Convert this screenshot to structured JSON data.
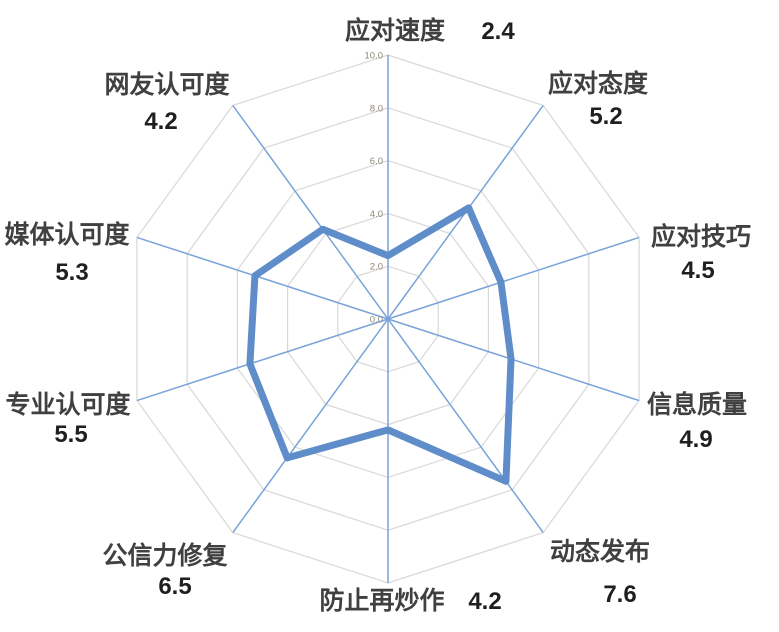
{
  "chart_data": {
    "type": "radar",
    "title": "",
    "axes_count": 10,
    "categories": [
      "应对速度",
      "应对态度",
      "应对技巧",
      "信息质量",
      "动态发布",
      "防止再炒作",
      "公信力修复",
      "专业认可度",
      "媒体认可度",
      "网友认可度"
    ],
    "values": [
      2.4,
      5.2,
      4.5,
      4.9,
      7.6,
      4.2,
      6.5,
      5.5,
      5.3,
      4.2
    ],
    "value_labels": [
      "2.4",
      "5.2",
      "4.5",
      "4.9",
      "7.6",
      "4.2",
      "6.5",
      "5.5",
      "5.3",
      "4.2"
    ],
    "rlim": [
      0,
      10
    ],
    "tick_interval": 2,
    "axis_ticks": [
      "0.0",
      "2.0",
      "4.0",
      "6.0",
      "8.0",
      "10.0"
    ],
    "grid": true,
    "legend": "none",
    "colors": {
      "series": "#5f8dc9",
      "radial_axis": "#79a3d9",
      "gridline": "#d8d8d8",
      "category_text": "#404040",
      "value_text": "#1f1f1f",
      "tick_text": "#8f8878",
      "background": "#ffffff"
    }
  }
}
